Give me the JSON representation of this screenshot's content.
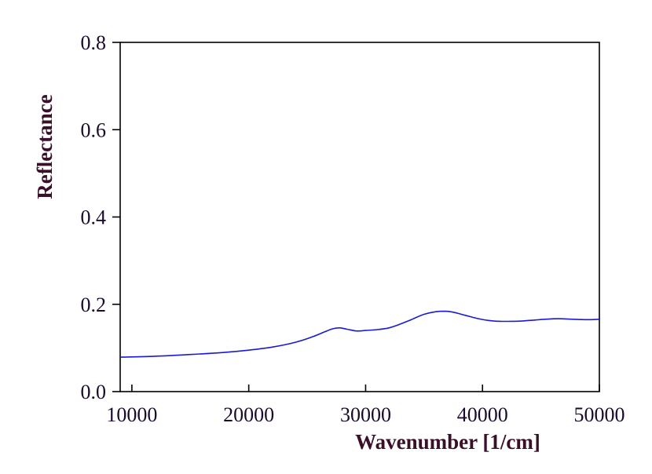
{
  "chart_data": {
    "type": "line",
    "title": "",
    "xlabel": "Wavenumber [1/cm]",
    "ylabel": "Reflectance",
    "xlim": [
      9000,
      50000
    ],
    "ylim": [
      0.0,
      0.8
    ],
    "x_ticks": [
      10000,
      20000,
      30000,
      40000,
      50000
    ],
    "y_ticks": [
      0.0,
      0.2,
      0.4,
      0.6,
      0.8
    ],
    "x_tick_labels": [
      "10000",
      "20000",
      "30000",
      "40000",
      "50000"
    ],
    "y_tick_labels": [
      "0.0",
      "0.2",
      "0.4",
      "0.6",
      "0.8"
    ],
    "grid": false,
    "legend": "none",
    "series": [
      {
        "color": "#1a1ad6",
        "x": [
          9000,
          12000,
          15000,
          18000,
          20000,
          22000,
          24000,
          25500,
          26500,
          27200,
          27800,
          28400,
          29200,
          30000,
          31000,
          32000,
          33000,
          34000,
          35000,
          36000,
          36800,
          37500,
          38500,
          39500,
          40500,
          41500,
          42500,
          43500,
          44500,
          45500,
          46500,
          47500,
          48500,
          49500,
          50000
        ],
        "y": [
          0.079,
          0.081,
          0.085,
          0.09,
          0.095,
          0.102,
          0.113,
          0.126,
          0.137,
          0.144,
          0.146,
          0.143,
          0.139,
          0.14,
          0.142,
          0.146,
          0.155,
          0.166,
          0.177,
          0.183,
          0.184,
          0.182,
          0.175,
          0.168,
          0.163,
          0.161,
          0.161,
          0.162,
          0.164,
          0.166,
          0.167,
          0.166,
          0.165,
          0.165,
          0.166
        ]
      }
    ]
  }
}
